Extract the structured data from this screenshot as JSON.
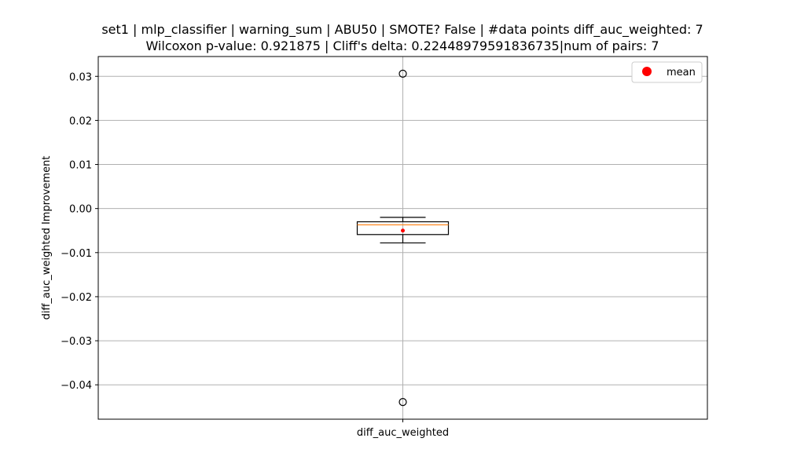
{
  "chart_data": {
    "type": "box",
    "title_line1": "set1 | mlp_classifier | warning_sum | ABU50 | SMOTE? False | #data points diff_auc_weighted: 7",
    "title_line2": "Wilcoxon p-value: 0.921875 | Cliff's delta: 0.22448979591836735|num of pairs: 7",
    "xlabel": "",
    "ylabel": "diff_auc_weighted Improvement",
    "categories": [
      "diff_auc_weighted"
    ],
    "ylim": [
      -0.0478,
      0.0345
    ],
    "yticks": [
      -0.04,
      -0.03,
      -0.02,
      -0.01,
      0.0,
      0.01,
      0.02,
      0.03
    ],
    "ytick_labels": [
      "−0.04",
      "−0.03",
      "−0.02",
      "−0.01",
      "0.00",
      "0.01",
      "0.02",
      "0.03"
    ],
    "grid": true,
    "box": {
      "whisker_low": -0.0078,
      "q1": -0.0059,
      "median": -0.0037,
      "q3": -0.003,
      "whisker_high": -0.002,
      "mean": -0.005,
      "outliers": [
        0.0306,
        -0.0439
      ]
    },
    "legend": {
      "position": "top-right",
      "entries": [
        {
          "label": "mean",
          "color": "#ff0000"
        }
      ]
    },
    "colors": {
      "box": "#000000",
      "median": "#ff7f0e",
      "mean": "#ff0000",
      "grid": "#b0b0b0"
    }
  }
}
